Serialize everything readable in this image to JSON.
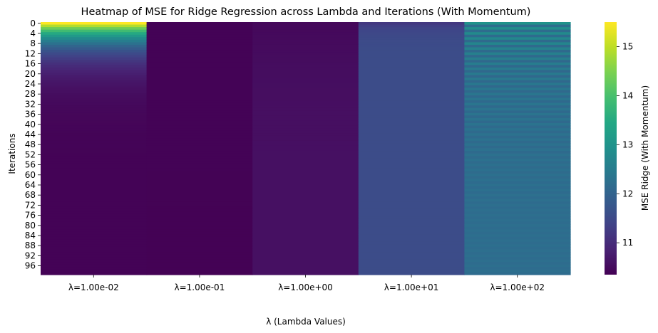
{
  "chart_data": {
    "type": "heatmap",
    "title": "Heatmap of MSE for Ridge Regression across Lambda and Iterations (With Momentum)",
    "xlabel": "λ (Lambda Values)",
    "ylabel": "Iterations",
    "x_categories": [
      "λ=1.00e-02",
      "λ=1.00e-01",
      "λ=1.00e+00",
      "λ=1.00e+01",
      "λ=1.00e+02"
    ],
    "y_tick_labels": [
      "0",
      "4",
      "8",
      "12",
      "16",
      "20",
      "24",
      "28",
      "32",
      "36",
      "40",
      "44",
      "48",
      "52",
      "56",
      "60",
      "64",
      "68",
      "72",
      "76",
      "80",
      "84",
      "88",
      "92",
      "96"
    ],
    "iterations": 100,
    "colorbar": {
      "label": "MSE Ridge (With Momentum)",
      "colormap": "viridis",
      "range": [
        10.35,
        15.5
      ],
      "ticks": [
        11,
        12,
        13,
        14,
        15
      ]
    },
    "series_summary": [
      {
        "name": "λ=1.00e-02",
        "start": 15.5,
        "end": 10.38,
        "pattern": "decaying"
      },
      {
        "name": "λ=1.00e-01",
        "start": 10.38,
        "end": 10.37,
        "pattern": "flat"
      },
      {
        "name": "λ=1.00e+00",
        "start": 10.45,
        "end": 10.58,
        "pattern": "slow-rise"
      },
      {
        "name": "λ=1.00e+01",
        "start": 11.2,
        "end": 11.55,
        "pattern": "rise-then-flat"
      },
      {
        "name": "λ=1.00e+02",
        "start": 12.6,
        "end": 12.2,
        "pattern": "oscillating-decay"
      }
    ]
  }
}
